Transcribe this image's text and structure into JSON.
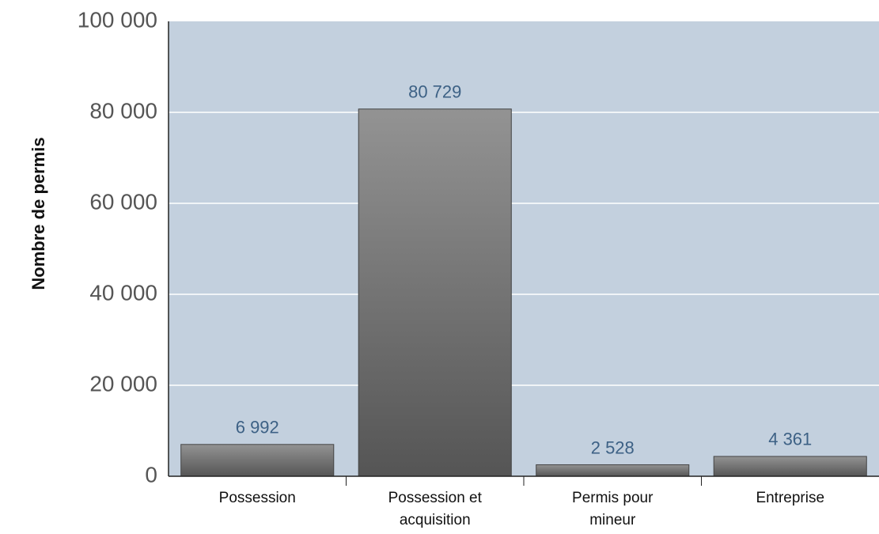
{
  "chart_data": {
    "type": "bar",
    "y_axis_label": "Nombre de permis",
    "categories": [
      "Possession",
      "Possession et acquisition",
      "Permis pour mineur",
      "Entreprise"
    ],
    "values": [
      6992,
      80729,
      2528,
      4361
    ],
    "value_labels": [
      "6 992",
      "80 729",
      "2 528",
      "4 361"
    ],
    "color": "#7a7a7a",
    "ylim": [
      0,
      100000
    ],
    "yticks": [
      0,
      {
        "value": 20000,
        "label": "20 000"
      },
      {
        "value": 40000,
        "label": "40 000"
      },
      {
        "value": 60000,
        "label": "60 000"
      },
      {
        "value": 80000,
        "label": "80 000"
      },
      {
        "value": 100000,
        "label": "100 000"
      }
    ],
    "grid": true
  }
}
